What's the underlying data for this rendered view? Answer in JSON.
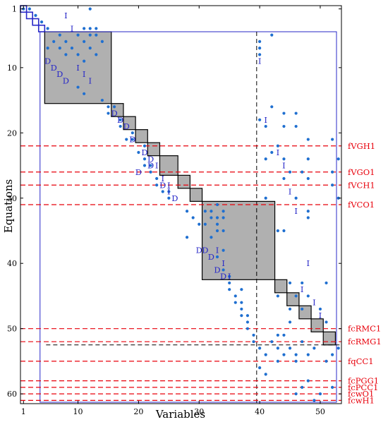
{
  "chart_data": {
    "type": "scatter",
    "title": "",
    "xlabel": "Variables",
    "ylabel": "Equations",
    "xlim": [
      0.5,
      53.5
    ],
    "ylim": [
      61.5,
      0.5
    ],
    "x_ticks": [
      1,
      10,
      20,
      30,
      40,
      50
    ],
    "y_ticks": [
      1,
      10,
      20,
      30,
      40,
      50,
      60
    ],
    "colors": {
      "dots": "#1f6fd0",
      "markers": "#2828c8",
      "dashed_rows": "#e8000b",
      "blocks_fill": "#b0b0b0",
      "outer_border": "#2828c8"
    },
    "diagonal_blocks": [
      {
        "r0": 1,
        "r1": 1,
        "filled": false
      },
      {
        "r0": 2,
        "r1": 2,
        "filled": false
      },
      {
        "r0": 3,
        "r1": 3,
        "filled": false
      },
      {
        "r0": 4,
        "r1": 4,
        "filled": false
      },
      {
        "r0": 5,
        "r1": 15,
        "filled": true
      },
      {
        "r0": 16,
        "r1": 17,
        "filled": true
      },
      {
        "r0": 18,
        "r1": 19,
        "filled": true
      },
      {
        "r0": 20,
        "r1": 21,
        "filled": true
      },
      {
        "r0": 22,
        "r1": 23,
        "filled": true
      },
      {
        "r0": 24,
        "r1": 26,
        "filled": true
      },
      {
        "r0": 27,
        "r1": 28,
        "filled": true
      },
      {
        "r0": 29,
        "r1": 30,
        "filled": true
      },
      {
        "r0": 31,
        "r1": 42,
        "filled": true
      },
      {
        "r0": 43,
        "r1": 44,
        "filled": true
      },
      {
        "r0": 45,
        "r1": 46,
        "filled": true
      },
      {
        "r0": 47,
        "r1": 48,
        "filled": true
      },
      {
        "r0": 49,
        "r1": 50,
        "filled": true
      },
      {
        "r0": 51,
        "r1": 52,
        "filled": true
      }
    ],
    "outer_box": {
      "c0": 4,
      "c1": 53,
      "r0": 5,
      "r1": 61
    },
    "vertical_dashed_col": 39.5,
    "black_dashed_row": 52.5,
    "row_labels": [
      {
        "row": 22,
        "label": "fVGH1"
      },
      {
        "row": 26,
        "label": "fVGO1"
      },
      {
        "row": 28,
        "label": "fVCH1"
      },
      {
        "row": 31,
        "label": "fVCO1"
      },
      {
        "row": 50,
        "label": "fcRMC1"
      },
      {
        "row": 52,
        "label": "fcRMG1"
      },
      {
        "row": 55,
        "label": "fqCC1"
      },
      {
        "row": 58,
        "label": "fcPGG1"
      },
      {
        "row": 59,
        "label": "fcPCC1"
      },
      {
        "row": 60,
        "label": "fcwO1"
      },
      {
        "row": 61,
        "label": "fcwH1"
      }
    ],
    "markers": [
      {
        "col": 8,
        "row": 2,
        "text": "I"
      },
      {
        "col": 9,
        "row": 4,
        "text": "I"
      },
      {
        "col": 5,
        "row": 9,
        "text": "D"
      },
      {
        "col": 6,
        "row": 10,
        "text": "D"
      },
      {
        "col": 7,
        "row": 11,
        "text": "D"
      },
      {
        "col": 8,
        "row": 12,
        "text": "D"
      },
      {
        "col": 10,
        "row": 10,
        "text": "I"
      },
      {
        "col": 11,
        "row": 11,
        "text": "I"
      },
      {
        "col": 12,
        "row": 12,
        "text": "I"
      },
      {
        "col": 16,
        "row": 17,
        "text": "D"
      },
      {
        "col": 18,
        "row": 19,
        "text": "D"
      },
      {
        "col": 19,
        "row": 21,
        "text": "D"
      },
      {
        "col": 21,
        "row": 23,
        "text": "D"
      },
      {
        "col": 22,
        "row": 25,
        "text": "D"
      },
      {
        "col": 24,
        "row": 28,
        "text": "D"
      },
      {
        "col": 26,
        "row": 30,
        "text": "D"
      },
      {
        "col": 25,
        "row": 28,
        "text": "I"
      },
      {
        "col": 24,
        "row": 27,
        "text": "I"
      },
      {
        "col": 25,
        "row": 29,
        "text": "I"
      },
      {
        "col": 23,
        "row": 25,
        "text": "I"
      },
      {
        "col": 33,
        "row": 38,
        "text": "I"
      },
      {
        "col": 34,
        "row": 40,
        "text": "I"
      },
      {
        "col": 35,
        "row": 42,
        "text": "I"
      },
      {
        "col": 32,
        "row": 39,
        "text": "D"
      },
      {
        "col": 33,
        "row": 41,
        "text": "D"
      },
      {
        "col": 40,
        "row": 9,
        "text": "I"
      },
      {
        "col": 41,
        "row": 18,
        "text": "I"
      },
      {
        "col": 43,
        "row": 23,
        "text": "I"
      },
      {
        "col": 44,
        "row": 25,
        "text": "I"
      },
      {
        "col": 45,
        "row": 29,
        "text": "I"
      },
      {
        "col": 46,
        "row": 32,
        "text": "I"
      },
      {
        "col": 48,
        "row": 40,
        "text": "I"
      },
      {
        "col": 47,
        "row": 44,
        "text": "I"
      },
      {
        "col": 49,
        "row": 46,
        "text": "I"
      },
      {
        "col": 50,
        "row": 48,
        "text": "I"
      },
      {
        "col": 20,
        "row": 26,
        "text": "D"
      },
      {
        "col": 17,
        "row": 18,
        "text": "D"
      },
      {
        "col": 22,
        "row": 24,
        "text": "D"
      },
      {
        "col": 30,
        "row": 38,
        "text": "D"
      },
      {
        "col": 31,
        "row": 38,
        "text": "D"
      },
      {
        "col": 34,
        "row": 42,
        "text": "D"
      }
    ],
    "points": [
      [
        1,
        1
      ],
      [
        2,
        1
      ],
      [
        12,
        1
      ],
      [
        3,
        2
      ],
      [
        4,
        3
      ],
      [
        5,
        4
      ],
      [
        11,
        4
      ],
      [
        12,
        4
      ],
      [
        13,
        4
      ],
      [
        42,
        5
      ],
      [
        7,
        5
      ],
      [
        10,
        5
      ],
      [
        12,
        5
      ],
      [
        13,
        5
      ],
      [
        6,
        6
      ],
      [
        8,
        6
      ],
      [
        11,
        6
      ],
      [
        14,
        6
      ],
      [
        7,
        7
      ],
      [
        9,
        7
      ],
      [
        12,
        7
      ],
      [
        5,
        7
      ],
      [
        8,
        8
      ],
      [
        10,
        8
      ],
      [
        13,
        8
      ],
      [
        40,
        6
      ],
      [
        40,
        7
      ],
      [
        40,
        8
      ],
      [
        11,
        9
      ],
      [
        10,
        13
      ],
      [
        11,
        14
      ],
      [
        14,
        15
      ],
      [
        42,
        16
      ],
      [
        15,
        16
      ],
      [
        16,
        16
      ],
      [
        44,
        17
      ],
      [
        46,
        17
      ],
      [
        15,
        17
      ],
      [
        40,
        18
      ],
      [
        41,
        19
      ],
      [
        44,
        19
      ],
      [
        46,
        19
      ],
      [
        17,
        18
      ],
      [
        17,
        19
      ],
      [
        19,
        20
      ],
      [
        18,
        21
      ],
      [
        19,
        21
      ],
      [
        48,
        21
      ],
      [
        52,
        21
      ],
      [
        43,
        22
      ],
      [
        20,
        23
      ],
      [
        42,
        23
      ],
      [
        21,
        22
      ],
      [
        41,
        24
      ],
      [
        44,
        24
      ],
      [
        48,
        24
      ],
      [
        53,
        24
      ],
      [
        21,
        24
      ],
      [
        21,
        25
      ],
      [
        22,
        25
      ],
      [
        22,
        26
      ],
      [
        45,
        26
      ],
      [
        47,
        26
      ],
      [
        52,
        26
      ],
      [
        23,
        27
      ],
      [
        23,
        28
      ],
      [
        44,
        27
      ],
      [
        48,
        27
      ],
      [
        52,
        28
      ],
      [
        24,
        29
      ],
      [
        25,
        29
      ],
      [
        41,
        30
      ],
      [
        46,
        30
      ],
      [
        53,
        30
      ],
      [
        25,
        30
      ],
      [
        48,
        32
      ],
      [
        48,
        33
      ],
      [
        33,
        31
      ],
      [
        28,
        32
      ],
      [
        31,
        32
      ],
      [
        32,
        32
      ],
      [
        34,
        32
      ],
      [
        29,
        33
      ],
      [
        32,
        33
      ],
      [
        33,
        33
      ],
      [
        34,
        33
      ],
      [
        30,
        34
      ],
      [
        31,
        34
      ],
      [
        33,
        34
      ],
      [
        43,
        35
      ],
      [
        44,
        35
      ],
      [
        33,
        35
      ],
      [
        34,
        35
      ],
      [
        32,
        36
      ],
      [
        28,
        36
      ],
      [
        34,
        38
      ],
      [
        33,
        39
      ],
      [
        34,
        41
      ],
      [
        35,
        42
      ],
      [
        35,
        43
      ],
      [
        35,
        44
      ],
      [
        45,
        43
      ],
      [
        47,
        43
      ],
      [
        51,
        43
      ],
      [
        36,
        45
      ],
      [
        37,
        44
      ],
      [
        43,
        45
      ],
      [
        46,
        45
      ],
      [
        48,
        45
      ],
      [
        36,
        46
      ],
      [
        37,
        46
      ],
      [
        45,
        47
      ],
      [
        47,
        47
      ],
      [
        50,
        47
      ],
      [
        37,
        47
      ],
      [
        37,
        48
      ],
      [
        38,
        48
      ],
      [
        51,
        49
      ],
      [
        45,
        49
      ],
      [
        38,
        49
      ],
      [
        38,
        50
      ],
      [
        39,
        51
      ],
      [
        43,
        51
      ],
      [
        44,
        51
      ],
      [
        39,
        52
      ],
      [
        42,
        52
      ],
      [
        47,
        52
      ],
      [
        40,
        53
      ],
      [
        43,
        53
      ],
      [
        45,
        53
      ],
      [
        49,
        53
      ],
      [
        53,
        53
      ],
      [
        41,
        54
      ],
      [
        44,
        54
      ],
      [
        46,
        54
      ],
      [
        48,
        54
      ],
      [
        52,
        54
      ],
      [
        43,
        55
      ],
      [
        46,
        55
      ],
      [
        51,
        55
      ],
      [
        40,
        56
      ],
      [
        41,
        57
      ],
      [
        48,
        58
      ],
      [
        47,
        59
      ],
      [
        46,
        60
      ],
      [
        50,
        60
      ],
      [
        49,
        61
      ],
      [
        52,
        59
      ]
    ]
  }
}
